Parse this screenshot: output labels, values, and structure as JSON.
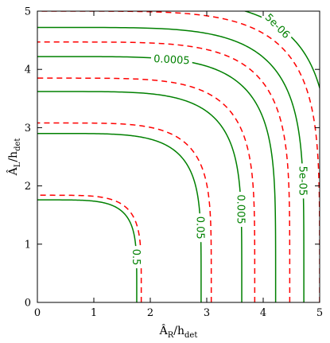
{
  "chart_data": {
    "type": "contour",
    "xlabel": {
      "main": "Â",
      "sub": "R",
      "rest": "/h",
      "rest_sub": "det"
    },
    "ylabel": {
      "main": "Â",
      "sub": "L",
      "rest": "/h",
      "rest_sub": "det"
    },
    "xlim": [
      0,
      5
    ],
    "ylim": [
      0,
      5
    ],
    "x_ticks": [
      "0",
      "1",
      "2",
      "3",
      "4",
      "5"
    ],
    "y_ticks": [
      "0",
      "1",
      "2",
      "3",
      "4",
      "5"
    ],
    "grid": false,
    "colors": {
      "solid": "#008000",
      "dashed": "#ff0000",
      "axes": "#000000"
    },
    "solid_contours": [
      {
        "label": "0.5",
        "radius": 1.76,
        "label_position": "bottom"
      },
      {
        "label": "0.05",
        "radius": 2.9,
        "label_position": "bottom"
      },
      {
        "label": "0.005",
        "radius": 3.62,
        "label_position": "bottom"
      },
      {
        "label": "0.0005",
        "radius": 4.22,
        "label_position": "top"
      },
      {
        "label": "5e-05",
        "radius": 4.72,
        "label_position": "bottom"
      },
      {
        "label": "5e-06",
        "radius": 5.2,
        "label_position": "diagonal"
      }
    ],
    "dashed_contours": [
      {
        "radius": 1.84
      },
      {
        "radius": 3.08
      },
      {
        "radius": 3.85
      },
      {
        "radius": 4.47
      },
      {
        "radius": 5.0
      }
    ]
  }
}
